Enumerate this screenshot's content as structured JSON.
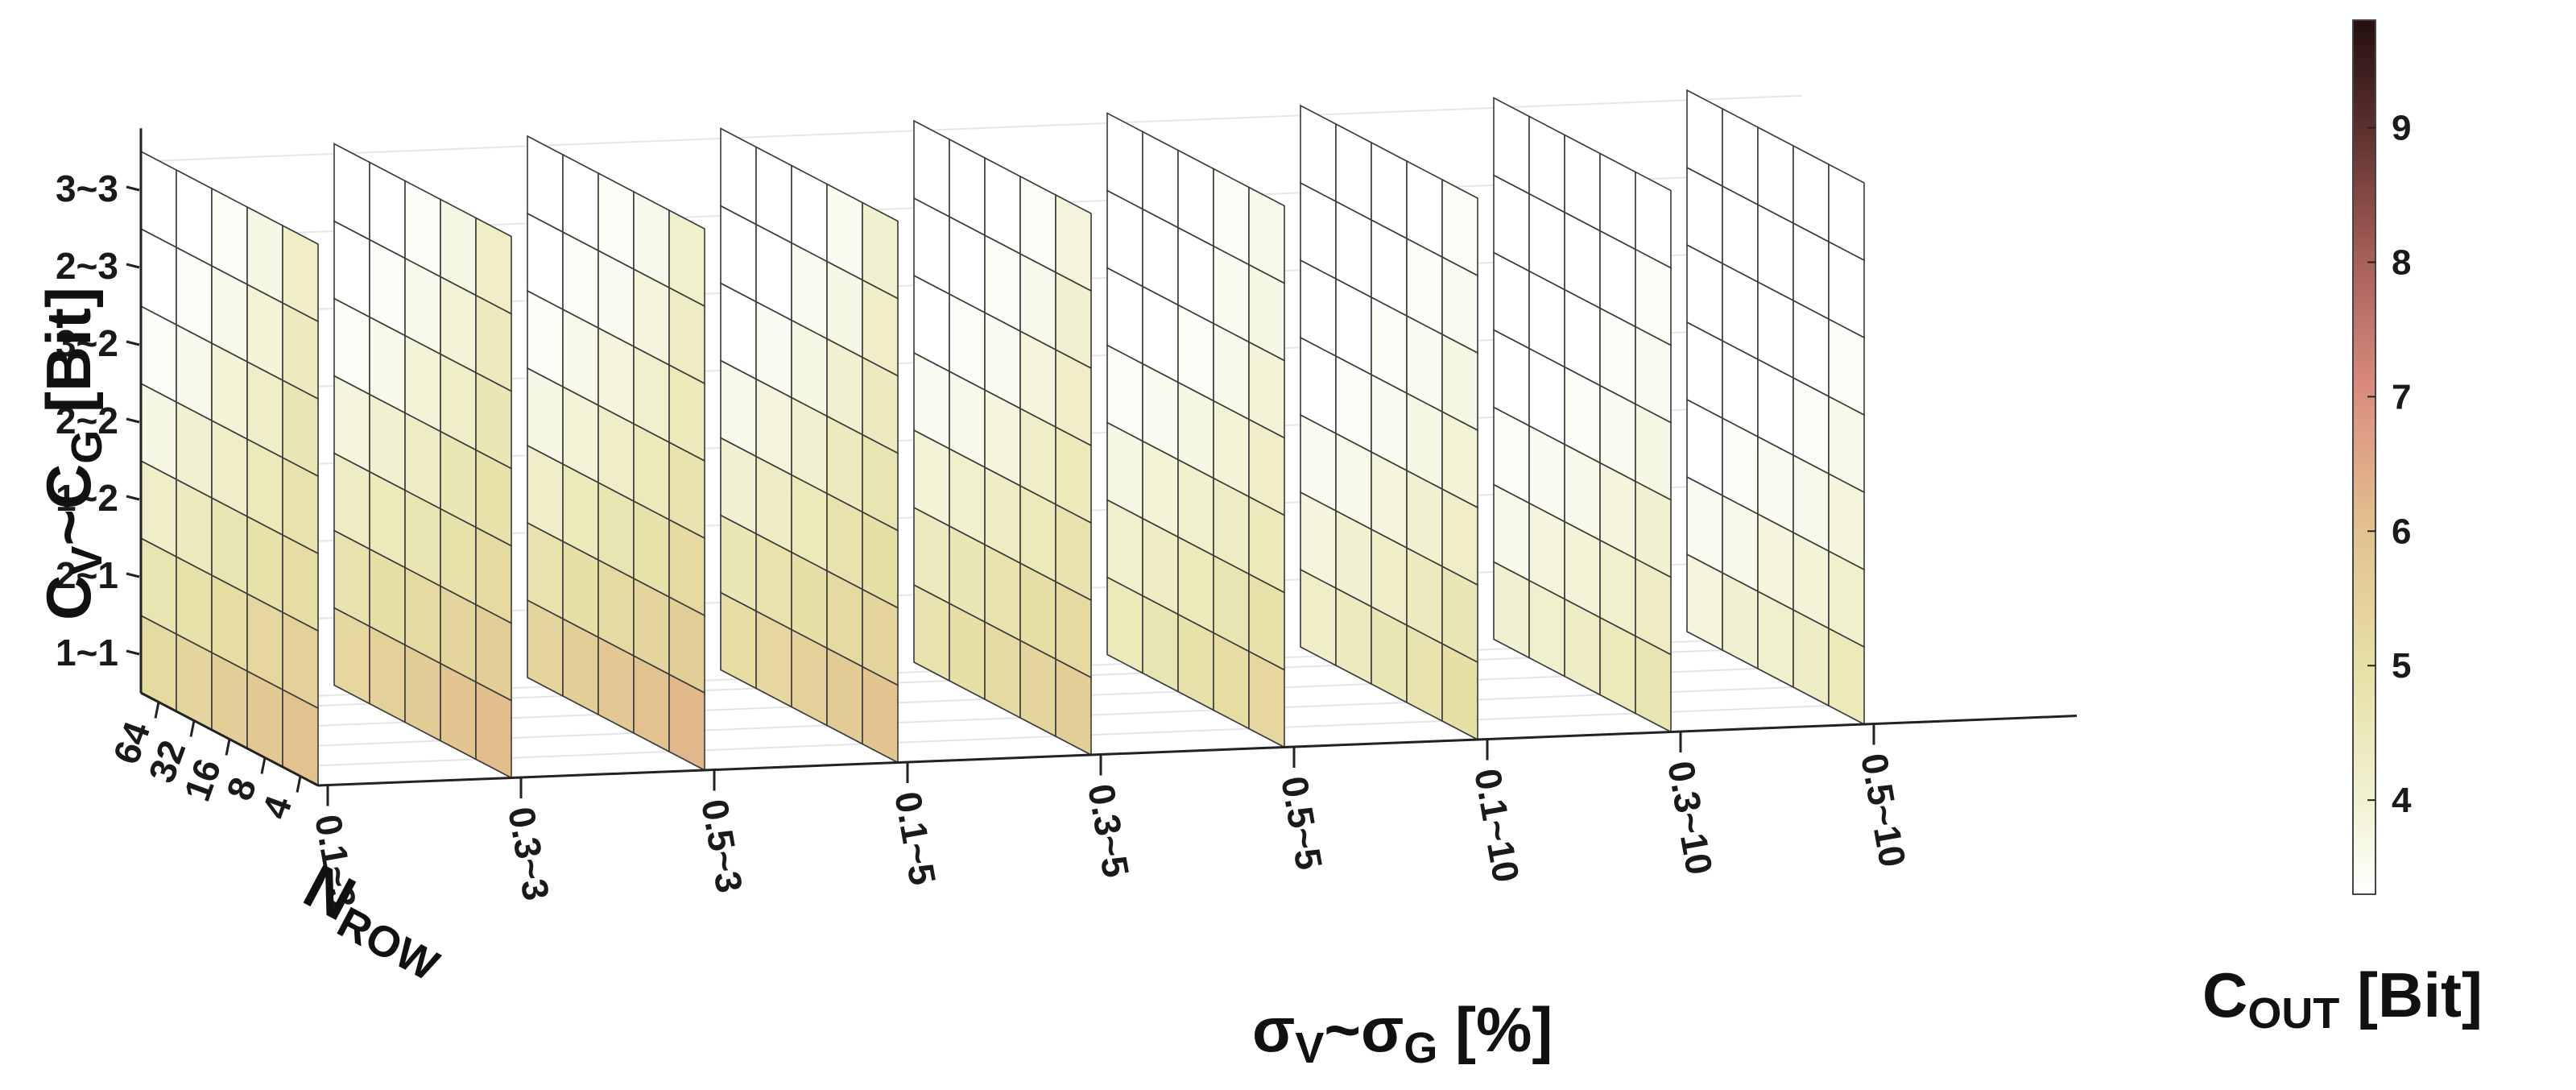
{
  "chart_data": {
    "type": "3d-waterfall",
    "x_ticks": [
      "0.1~3",
      "0.3~3",
      "0.5~3",
      "0.1~5",
      "0.3~5",
      "0.5~5",
      "0.1~10",
      "0.3~10",
      "0.5~10"
    ],
    "y_ticks": [
      "1~1",
      "2~1",
      "1~2",
      "2~2",
      "3~2",
      "2~3",
      "3~3"
    ],
    "depth_ticks": [
      "64",
      "32",
      "16",
      "8",
      "4"
    ],
    "xlabel": {
      "main": "σ",
      "sub1": "V",
      "mid": "~σ",
      "sub2": "G",
      "tail": " [%]"
    },
    "ylabel": {
      "main": "C",
      "sub1": "V",
      "mid": "~C",
      "sub2": "G",
      "tail": " [Bit]"
    },
    "depth_label": {
      "main": "N",
      "sub": "ROW"
    },
    "colorbar_label": {
      "main": "C",
      "sub": "OUT",
      "tail": "  [Bit]"
    },
    "colorbar": {
      "min": 3.3,
      "max": 9.8,
      "ticks": [
        4,
        5,
        6,
        7,
        8,
        9
      ]
    },
    "grid": true,
    "values": [
      [
        [
          6.0,
          5.5,
          5.1,
          4.8,
          4.6,
          4.4,
          4.2
        ],
        [
          5.8,
          5.3,
          4.9,
          4.5,
          4.2,
          3.9,
          3.7
        ],
        [
          5.6,
          5.1,
          4.7,
          4.2,
          3.9,
          3.6,
          3.4
        ],
        [
          5.4,
          4.9,
          4.4,
          4.0,
          3.6,
          3.4,
          3.3
        ],
        [
          5.2,
          4.7,
          4.2,
          3.7,
          3.4,
          3.3,
          3.3
        ]
      ],
      [
        [
          6.1,
          5.6,
          5.2,
          4.9,
          4.6,
          4.4,
          4.2
        ],
        [
          5.9,
          5.4,
          4.9,
          4.6,
          4.2,
          3.9,
          3.7
        ],
        [
          5.7,
          5.2,
          4.7,
          4.3,
          3.9,
          3.6,
          3.4
        ],
        [
          5.5,
          5.0,
          4.5,
          4.0,
          3.6,
          3.4,
          3.3
        ],
        [
          5.3,
          4.8,
          4.3,
          3.8,
          3.4,
          3.3,
          3.3
        ]
      ],
      [
        [
          6.2,
          5.6,
          5.2,
          4.8,
          4.5,
          4.3,
          4.1
        ],
        [
          6.0,
          5.4,
          4.9,
          4.5,
          4.1,
          3.8,
          3.6
        ],
        [
          5.8,
          5.2,
          4.7,
          4.2,
          3.8,
          3.5,
          3.4
        ],
        [
          5.6,
          5.0,
          4.5,
          3.9,
          3.6,
          3.4,
          3.3
        ],
        [
          5.4,
          4.8,
          4.2,
          3.7,
          3.4,
          3.3,
          3.3
        ]
      ],
      [
        [
          5.9,
          5.4,
          5.0,
          4.7,
          4.4,
          4.2,
          4.0
        ],
        [
          5.7,
          5.2,
          4.8,
          4.4,
          4.0,
          3.7,
          3.5
        ],
        [
          5.5,
          5.0,
          4.5,
          4.0,
          3.7,
          3.5,
          3.3
        ],
        [
          5.3,
          4.8,
          4.3,
          3.8,
          3.5,
          3.3,
          3.3
        ],
        [
          5.1,
          4.6,
          4.0,
          3.6,
          3.3,
          3.3,
          3.3
        ]
      ],
      [
        [
          5.6,
          5.2,
          4.8,
          4.5,
          4.2,
          4.0,
          3.8
        ],
        [
          5.4,
          5.0,
          4.5,
          4.2,
          3.8,
          3.6,
          3.4
        ],
        [
          5.2,
          4.8,
          4.3,
          3.8,
          3.5,
          3.4,
          3.3
        ],
        [
          5.0,
          4.6,
          4.1,
          3.6,
          3.4,
          3.3,
          3.3
        ],
        [
          4.8,
          4.4,
          3.9,
          3.5,
          3.3,
          3.3,
          3.3
        ]
      ],
      [
        [
          5.3,
          4.9,
          4.5,
          4.2,
          3.9,
          3.7,
          3.6
        ],
        [
          5.1,
          4.7,
          4.3,
          3.9,
          3.6,
          3.5,
          3.4
        ],
        [
          4.9,
          4.5,
          4.1,
          3.7,
          3.4,
          3.3,
          3.3
        ],
        [
          4.7,
          4.3,
          3.9,
          3.5,
          3.3,
          3.3,
          3.3
        ],
        [
          4.5,
          4.1,
          3.7,
          3.4,
          3.3,
          3.3,
          3.3
        ]
      ],
      [
        [
          5.0,
          4.6,
          4.2,
          3.9,
          3.7,
          3.5,
          3.4
        ],
        [
          4.8,
          4.4,
          4.0,
          3.7,
          3.5,
          3.4,
          3.3
        ],
        [
          4.6,
          4.2,
          3.8,
          3.5,
          3.4,
          3.3,
          3.3
        ],
        [
          4.4,
          4.0,
          3.6,
          3.4,
          3.3,
          3.3,
          3.3
        ],
        [
          4.2,
          3.8,
          3.5,
          3.3,
          3.3,
          3.3,
          3.3
        ]
      ],
      [
        [
          4.7,
          4.3,
          4.0,
          3.7,
          3.5,
          3.4,
          3.3
        ],
        [
          4.5,
          4.1,
          3.8,
          3.5,
          3.4,
          3.3,
          3.3
        ],
        [
          4.3,
          3.9,
          3.6,
          3.4,
          3.3,
          3.3,
          3.3
        ],
        [
          4.1,
          3.8,
          3.5,
          3.3,
          3.3,
          3.3,
          3.3
        ],
        [
          4.0,
          3.6,
          3.4,
          3.3,
          3.3,
          3.3,
          3.3
        ]
      ],
      [
        [
          4.5,
          4.1,
          3.8,
          3.6,
          3.4,
          3.3,
          3.3
        ],
        [
          4.3,
          3.9,
          3.6,
          3.4,
          3.3,
          3.3,
          3.3
        ],
        [
          4.1,
          3.8,
          3.5,
          3.3,
          3.3,
          3.3,
          3.3
        ],
        [
          4.0,
          3.6,
          3.4,
          3.3,
          3.3,
          3.3,
          3.3
        ],
        [
          3.8,
          3.5,
          3.3,
          3.3,
          3.3,
          3.3,
          3.3
        ]
      ]
    ]
  }
}
